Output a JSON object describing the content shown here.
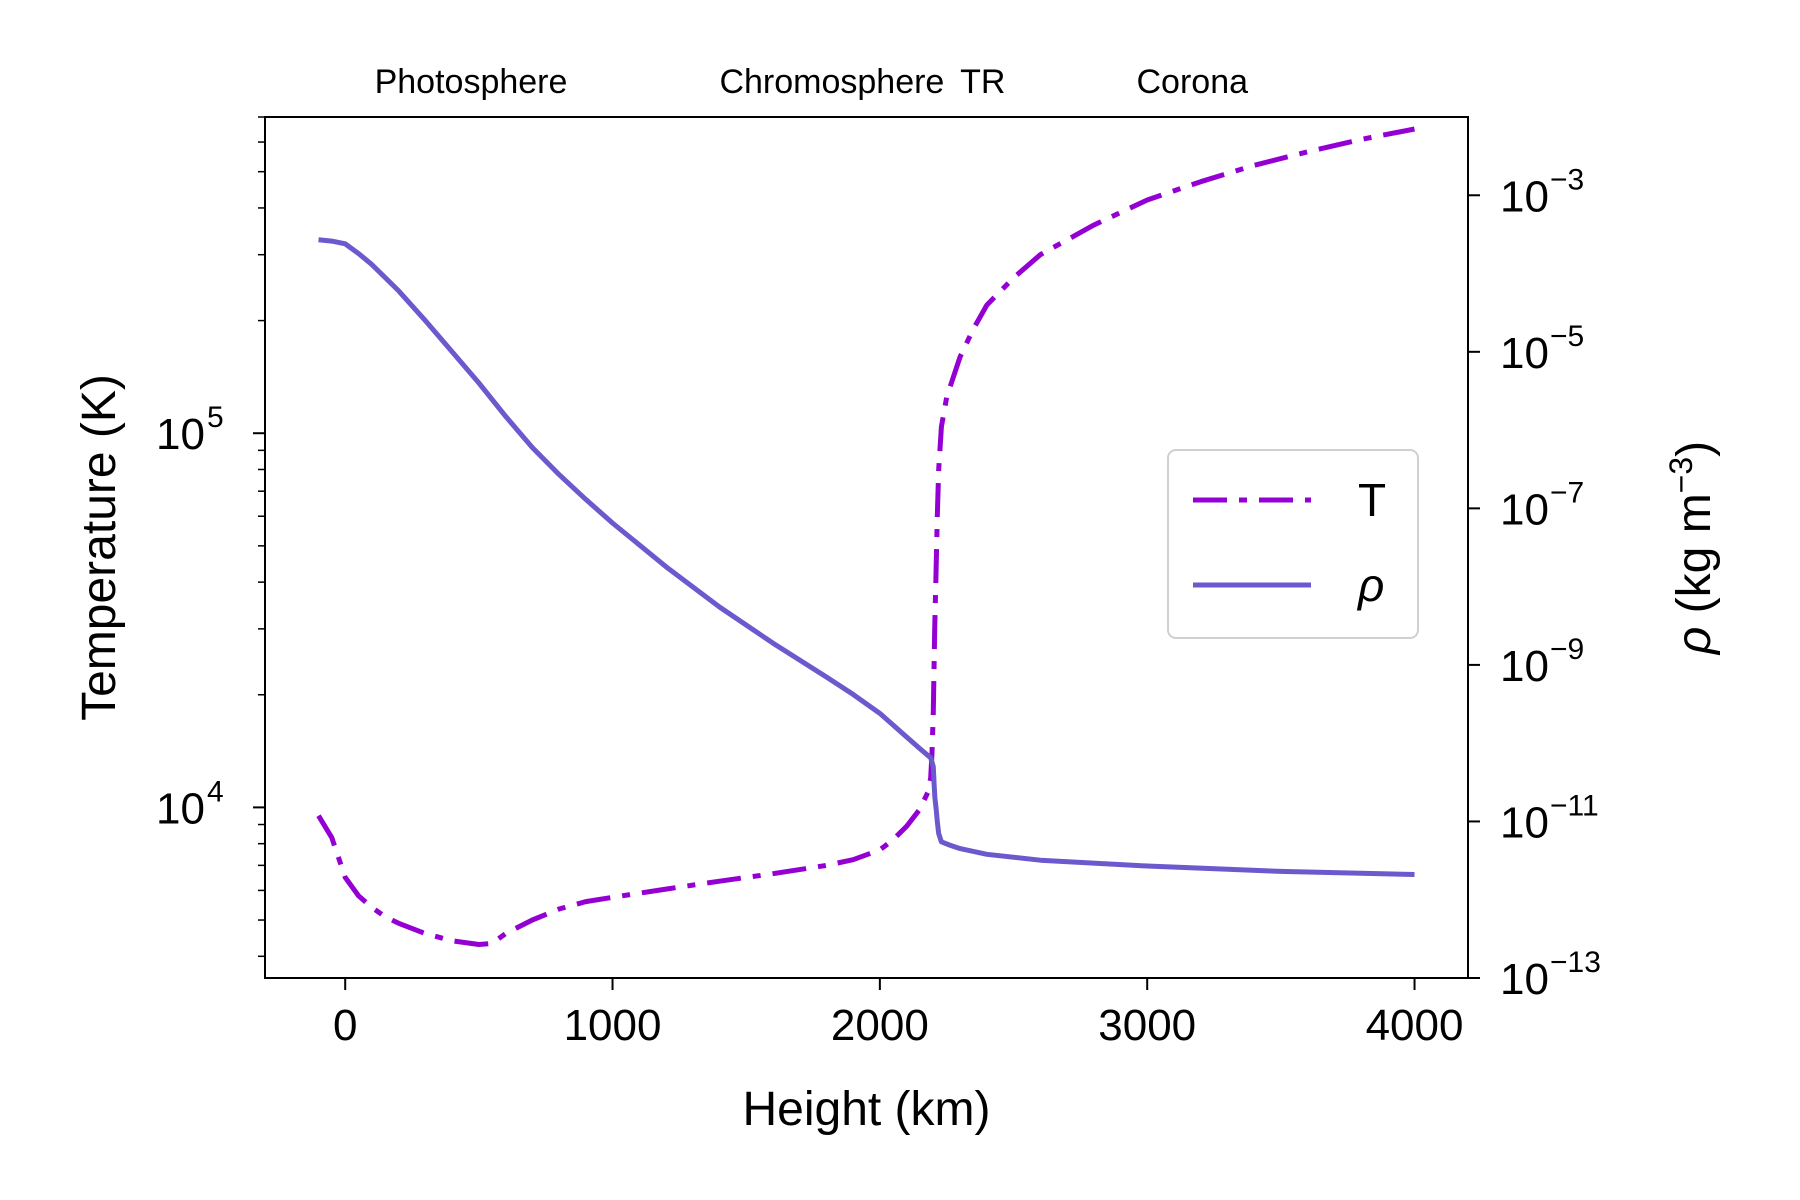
{
  "chart_data": {
    "type": "line",
    "region_labels": [
      {
        "text": "Photosphere",
        "x": 110
      },
      {
        "text": "Chromosphere",
        "x": 1400
      },
      {
        "text": "TR",
        "x": 2300
      },
      {
        "text": "Corona",
        "x": 2960
      }
    ],
    "x_axis": {
      "label": "Height (km)",
      "lim": [
        -300,
        4200
      ],
      "ticks": [
        0,
        1000,
        2000,
        3000,
        4000
      ]
    },
    "y_left": {
      "label": "Temperature (K)",
      "scale": "log",
      "lim": [
        3500,
        700000
      ],
      "major_ticks": [
        {
          "value": 10000,
          "base": "10",
          "exp": "4"
        },
        {
          "value": 100000,
          "base": "10",
          "exp": "5"
        }
      ]
    },
    "y_right": {
      "label_symbol": "ρ",
      "label_unit": " (kg m",
      "label_exp": "−3",
      "label_close": ")",
      "scale": "log",
      "lim": [
        1e-13,
        0.01
      ],
      "major_ticks": [
        {
          "value": 1e-13,
          "base": "10",
          "exp": "−13"
        },
        {
          "value": 1e-11,
          "base": "10",
          "exp": "−11"
        },
        {
          "value": 1e-09,
          "base": "10",
          "exp": "−9"
        },
        {
          "value": 1e-07,
          "base": "10",
          "exp": "−7"
        },
        {
          "value": 1e-05,
          "base": "10",
          "exp": "−5"
        },
        {
          "value": 0.001,
          "base": "10",
          "exp": "−3"
        }
      ]
    },
    "series": [
      {
        "name": "T",
        "axis": "left",
        "color": "#9400D3",
        "style": "dashdot",
        "x": [
          -100,
          -50,
          0,
          50,
          100,
          150,
          200,
          300,
          400,
          500,
          550,
          600,
          700,
          800,
          900,
          1000,
          1200,
          1400,
          1600,
          1800,
          1900,
          2000,
          2050,
          2100,
          2150,
          2180,
          2190,
          2195,
          2200,
          2205,
          2210,
          2215,
          2220,
          2230,
          2250,
          2300,
          2350,
          2400,
          2500,
          2600,
          2800,
          3000,
          3200,
          3400,
          3600,
          3800,
          4000
        ],
        "y": [
          9500,
          8300,
          6500,
          5800,
          5400,
          5100,
          4900,
          4600,
          4400,
          4300,
          4330,
          4600,
          5000,
          5350,
          5600,
          5750,
          6050,
          6350,
          6650,
          7000,
          7250,
          7700,
          8200,
          8900,
          9900,
          11000,
          12000,
          14000,
          18000,
          30000,
          42000,
          60000,
          80000,
          104000,
          125000,
          160000,
          190000,
          220000,
          260000,
          300000,
          360000,
          420000,
          470000,
          520000,
          565000,
          610000,
          650000
        ]
      },
      {
        "name": "ρ",
        "axis": "right",
        "color": "#6A5ACD",
        "style": "solid",
        "x": [
          -100,
          -50,
          0,
          50,
          100,
          200,
          300,
          400,
          500,
          600,
          700,
          800,
          900,
          1000,
          1200,
          1400,
          1600,
          1800,
          1900,
          2000,
          2050,
          2100,
          2150,
          2190,
          2200,
          2203,
          2206,
          2210,
          2215,
          2220,
          2230,
          2260,
          2300,
          2400,
          2600,
          3000,
          3500,
          4000
        ],
        "y": [
          0.00027,
          0.00026,
          0.00024,
          0.00018,
          0.00013,
          6e-05,
          2.5e-05,
          1e-05,
          4e-06,
          1.5e-06,
          6e-07,
          2.7e-07,
          1.3e-07,
          6.5e-08,
          1.8e-08,
          5.5e-09,
          1.9e-09,
          7e-10,
          4.2e-10,
          2.4e-10,
          1.7e-10,
          1.2e-10,
          8.5e-11,
          6.5e-11,
          5e-11,
          3e-11,
          2e-11,
          1.5e-11,
          1e-11,
          7e-12,
          5.5e-12,
          5e-12,
          4.5e-12,
          3.8e-12,
          3.2e-12,
          2.7e-12,
          2.3e-12,
          2.1e-12
        ]
      }
    ],
    "legend": {
      "position": "center-right",
      "entries": [
        {
          "label": "T",
          "series": 0
        },
        {
          "label": "ρ",
          "series": 1
        }
      ]
    }
  }
}
